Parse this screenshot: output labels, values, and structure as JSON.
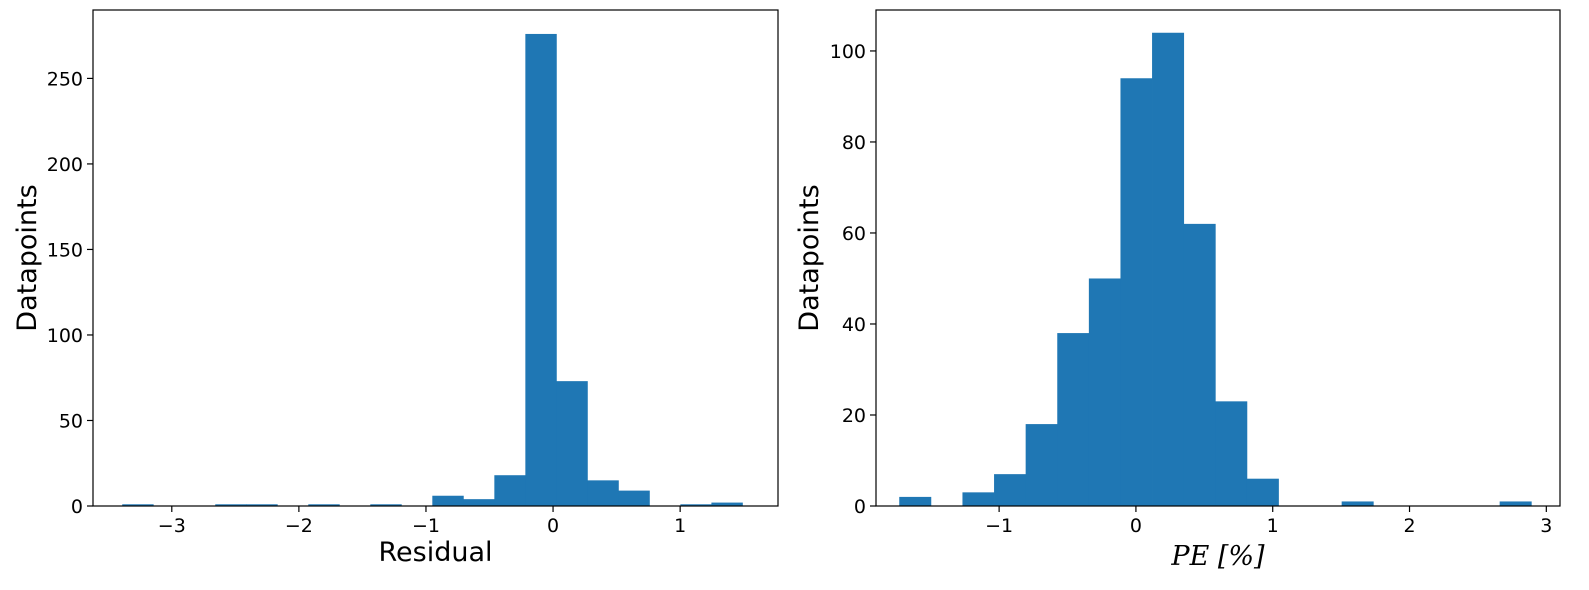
{
  "chart_data": [
    {
      "type": "bar",
      "title": "",
      "xlabel": "Residual",
      "ylabel": "Datapoints",
      "xlim": [
        -3.62,
        1.77
      ],
      "ylim": [
        0,
        290
      ],
      "xticks": [
        {
          "value": -3,
          "label": "−3"
        },
        {
          "value": -2,
          "label": "−2"
        },
        {
          "value": -1,
          "label": "−1"
        },
        {
          "value": 0,
          "label": "0"
        },
        {
          "value": 1,
          "label": "1"
        }
      ],
      "yticks": [
        {
          "value": 0,
          "label": "0"
        },
        {
          "value": 50,
          "label": "50"
        },
        {
          "value": 100,
          "label": "100"
        },
        {
          "value": 150,
          "label": "150"
        },
        {
          "value": 200,
          "label": "200"
        },
        {
          "value": 250,
          "label": "250"
        }
      ],
      "bin_edges": [
        -3.39,
        -3.146,
        -2.902,
        -2.658,
        -2.414,
        -2.17,
        -1.926,
        -1.682,
        -1.438,
        -1.194,
        -0.95,
        -0.706,
        -0.462,
        -0.218,
        0.026,
        0.27,
        0.514,
        0.758,
        1.002,
        1.246,
        1.49
      ],
      "values": [
        1,
        0,
        0,
        1,
        1,
        0,
        1,
        0,
        1,
        0,
        6,
        4,
        18,
        276,
        73,
        15,
        9,
        0,
        1,
        2
      ],
      "grid": false,
      "legend": "none"
    },
    {
      "type": "bar",
      "title": "",
      "xlabel": "PE [%]",
      "ylabel": "Datapoints",
      "xlim": [
        -1.9,
        3.1
      ],
      "ylim": [
        0,
        109
      ],
      "xticks": [
        {
          "value": -1,
          "label": "−1"
        },
        {
          "value": 0,
          "label": "0"
        },
        {
          "value": 1,
          "label": "1"
        },
        {
          "value": 2,
          "label": "2"
        },
        {
          "value": 3,
          "label": "3"
        }
      ],
      "yticks": [
        {
          "value": 0,
          "label": "0"
        },
        {
          "value": 20,
          "label": "20"
        },
        {
          "value": 40,
          "label": "40"
        },
        {
          "value": 60,
          "label": "60"
        },
        {
          "value": 80,
          "label": "80"
        },
        {
          "value": 100,
          "label": "100"
        }
      ],
      "bin_edges": [
        -1.73,
        -1.499,
        -1.268,
        -1.037,
        -0.806,
        -0.575,
        -0.344,
        -0.113,
        0.118,
        0.349,
        0.58,
        0.811,
        1.042,
        1.273,
        1.504,
        1.735,
        1.966,
        2.197,
        2.428,
        2.659,
        2.89
      ],
      "values": [
        2,
        0,
        3,
        7,
        18,
        38,
        50,
        94,
        104,
        62,
        23,
        6,
        0,
        0,
        1,
        0,
        0,
        0,
        0,
        1
      ],
      "grid": false,
      "legend": "none"
    }
  ]
}
